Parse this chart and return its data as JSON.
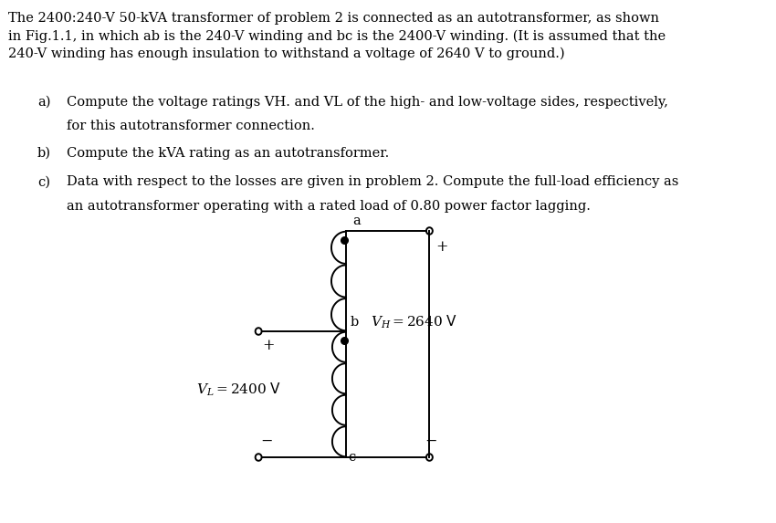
{
  "bg_color": "#ffffff",
  "text_color": "#000000",
  "font_size": 10.5,
  "para": "The 2400:240-V 50-kVA transformer of problem 2 is connected as an autotransformer, as shown\nin Fig.1.1, in which ab is the 240-V winding and bc is the 2400-V winding. (It is assumed that the\n240-V winding has enough insulation to withstand a voltage of 2640 V to ground.)",
  "line_a1": "Compute the voltage ratings VH. and VL of the high- and low-voltage sides, respectively,",
  "line_a2": "for this autotransformer connection.",
  "line_b": "Compute the kVA rating as an autotransformer.",
  "line_c1": "Data with respect to the losses are given in problem 2. Compute the full-load efficiency as",
  "line_c2": "an autotransformer operating with a rated load of 0.80 power factor lagging."
}
